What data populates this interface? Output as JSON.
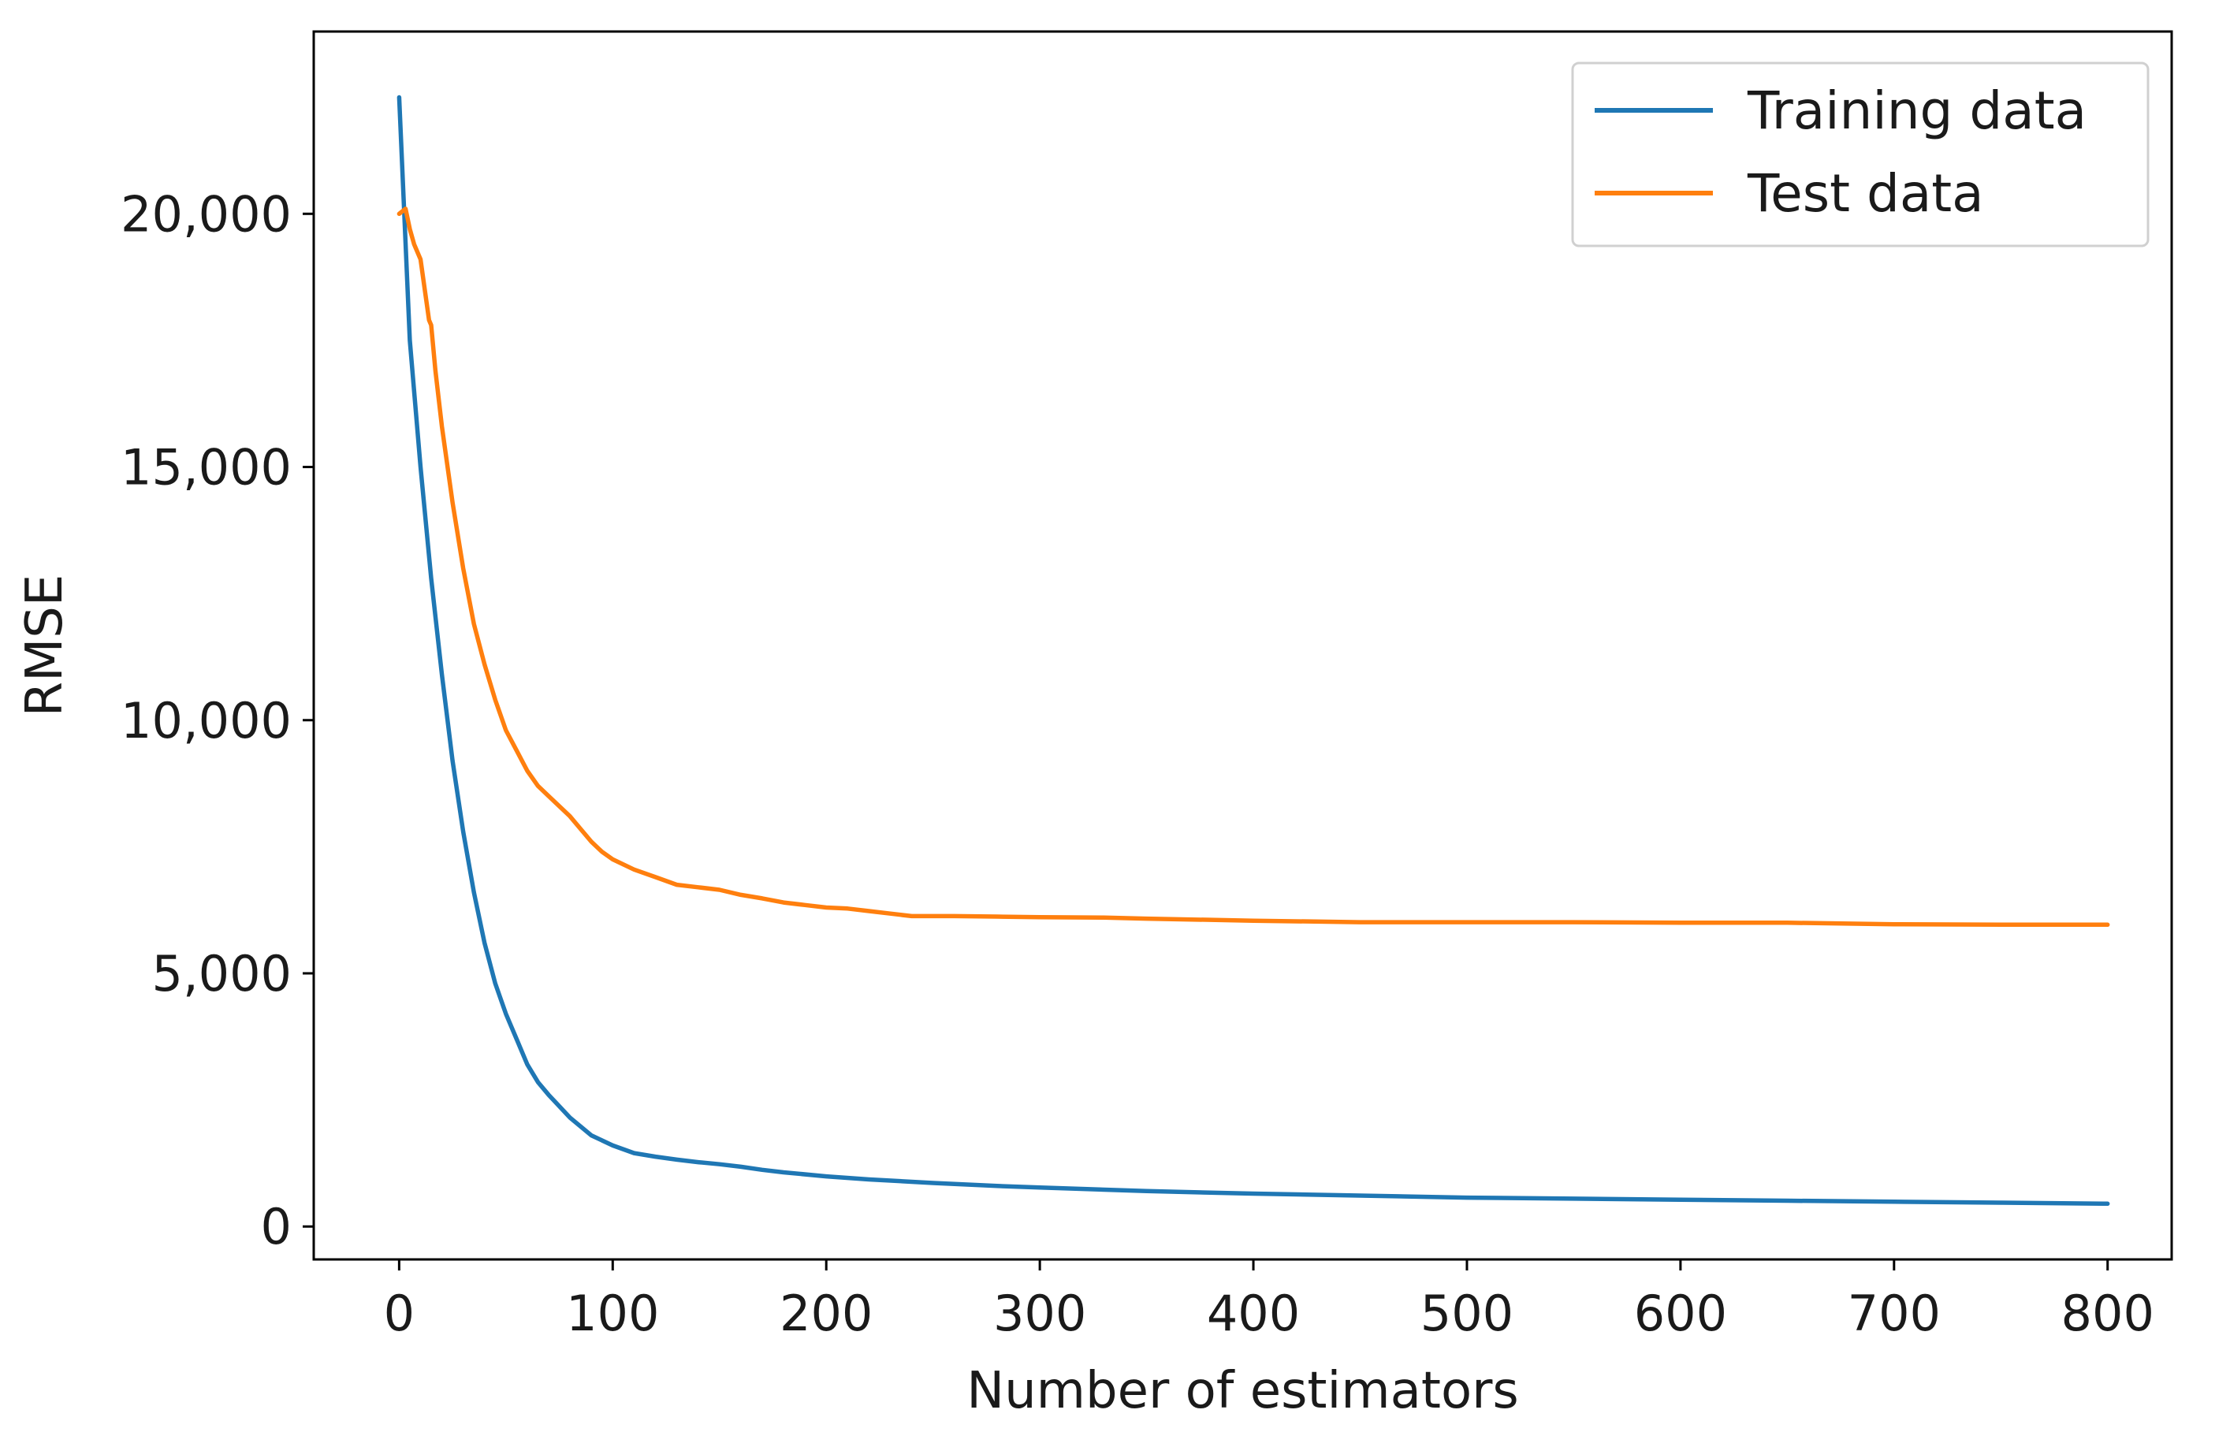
{
  "chart_data": {
    "type": "line",
    "xlabel": "Number of estimators",
    "ylabel": "RMSE",
    "xlim": [
      -40,
      830
    ],
    "ylim": [
      -650,
      23600
    ],
    "x_ticks": [
      0,
      100,
      200,
      300,
      400,
      500,
      600,
      700,
      800
    ],
    "x_tick_labels": [
      "0",
      "100",
      "200",
      "300",
      "400",
      "500",
      "600",
      "700",
      "800"
    ],
    "y_ticks": [
      0,
      5000,
      10000,
      15000,
      20000
    ],
    "y_tick_labels": [
      "0",
      "5,000",
      "10,000",
      "15,000",
      "20,000"
    ],
    "grid": false,
    "legend_position": "upper right",
    "series": [
      {
        "name": "Training data",
        "color": "#1f77b4",
        "x": [
          0,
          5,
          10,
          15,
          20,
          25,
          30,
          35,
          40,
          45,
          50,
          55,
          60,
          65,
          70,
          80,
          90,
          100,
          110,
          120,
          130,
          140,
          150,
          160,
          170,
          180,
          200,
          220,
          250,
          280,
          300,
          350,
          400,
          450,
          500,
          550,
          600,
          650,
          700,
          750,
          800
        ],
        "y": [
          22300,
          17500,
          15000,
          12800,
          10900,
          9200,
          7800,
          6600,
          5600,
          4800,
          4200,
          3700,
          3200,
          2850,
          2600,
          2150,
          1800,
          1600,
          1450,
          1380,
          1320,
          1270,
          1230,
          1180,
          1120,
          1070,
          990,
          930,
          860,
          800,
          770,
          700,
          650,
          610,
          570,
          550,
          530,
          510,
          490,
          470,
          450
        ]
      },
      {
        "name": "Test data",
        "color": "#ff7f0e",
        "x": [
          0,
          3,
          5,
          7,
          10,
          12,
          14,
          15,
          17,
          20,
          25,
          30,
          35,
          40,
          45,
          50,
          55,
          60,
          65,
          70,
          75,
          80,
          85,
          90,
          95,
          100,
          110,
          120,
          130,
          140,
          150,
          160,
          170,
          180,
          190,
          200,
          210,
          220,
          230,
          240,
          260,
          280,
          300,
          330,
          350,
          400,
          450,
          500,
          550,
          600,
          650,
          700,
          750,
          800
        ],
        "y": [
          20000,
          20100,
          19700,
          19400,
          19100,
          18500,
          17900,
          17800,
          16900,
          15800,
          14300,
          13000,
          11900,
          11100,
          10400,
          9800,
          9400,
          9000,
          8700,
          8500,
          8300,
          8100,
          7850,
          7600,
          7400,
          7250,
          7050,
          6900,
          6750,
          6700,
          6650,
          6550,
          6480,
          6400,
          6350,
          6300,
          6280,
          6230,
          6180,
          6130,
          6130,
          6120,
          6110,
          6100,
          6080,
          6040,
          6010,
          6010,
          6010,
          6000,
          6000,
          5970,
          5960,
          5960
        ]
      }
    ]
  }
}
